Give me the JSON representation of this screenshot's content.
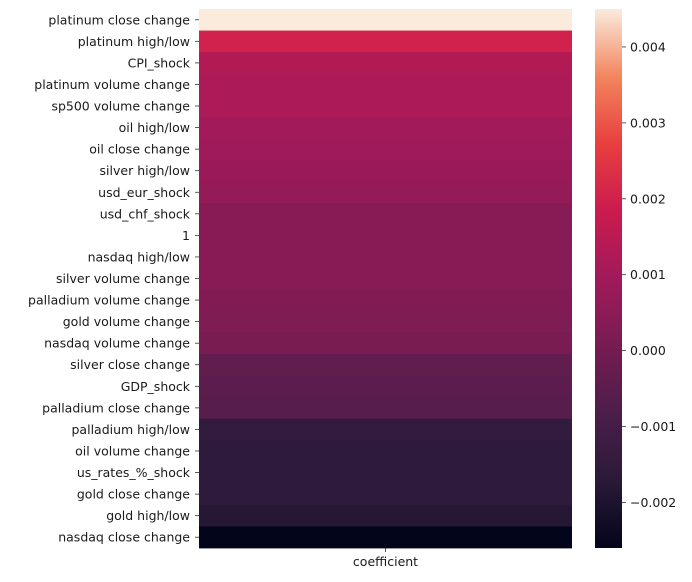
{
  "chart_data": {
    "type": "heatmap",
    "title": "",
    "xlabel": "",
    "ylabel": "",
    "columns": [
      "coefficient"
    ],
    "rows": [
      "platinum close change",
      "platinum high/low",
      "CPI_shock",
      "platinum volume change",
      "sp500 volume change",
      "oil high/low",
      "oil close change",
      "silver high/low",
      "usd_eur_shock",
      "usd_chf_shock",
      "1",
      "nasdaq high/low",
      "silver volume change",
      "palladium volume change",
      "gold volume change",
      "nasdaq volume change",
      "silver close change",
      "GDP_shock",
      "palladium close change",
      "palladium high/low",
      "oil volume change",
      "us_rates_%_shock",
      "gold close change",
      "gold high/low",
      "nasdaq close change"
    ],
    "values": [
      0.0045,
      0.002,
      0.0013,
      0.0012,
      0.0012,
      0.001,
      0.0009,
      0.0008,
      0.0007,
      0.0004,
      0.0004,
      0.0004,
      0.0004,
      0.0003,
      0.0002,
      0.0001,
      -0.0004,
      -0.0005,
      -0.0006,
      -0.0015,
      -0.0016,
      -0.0016,
      -0.0016,
      -0.0018,
      -0.0026
    ],
    "colorbar": {
      "min": -0.0026,
      "max": 0.0045,
      "ticks": [
        -0.002,
        -0.001,
        0.0,
        0.001,
        0.002,
        0.003,
        0.004
      ],
      "tick_labels": [
        "−0.002",
        "−0.001",
        "0.000",
        "0.001",
        "0.002",
        "0.003",
        "0.004"
      ],
      "colormap": "rocket"
    }
  }
}
